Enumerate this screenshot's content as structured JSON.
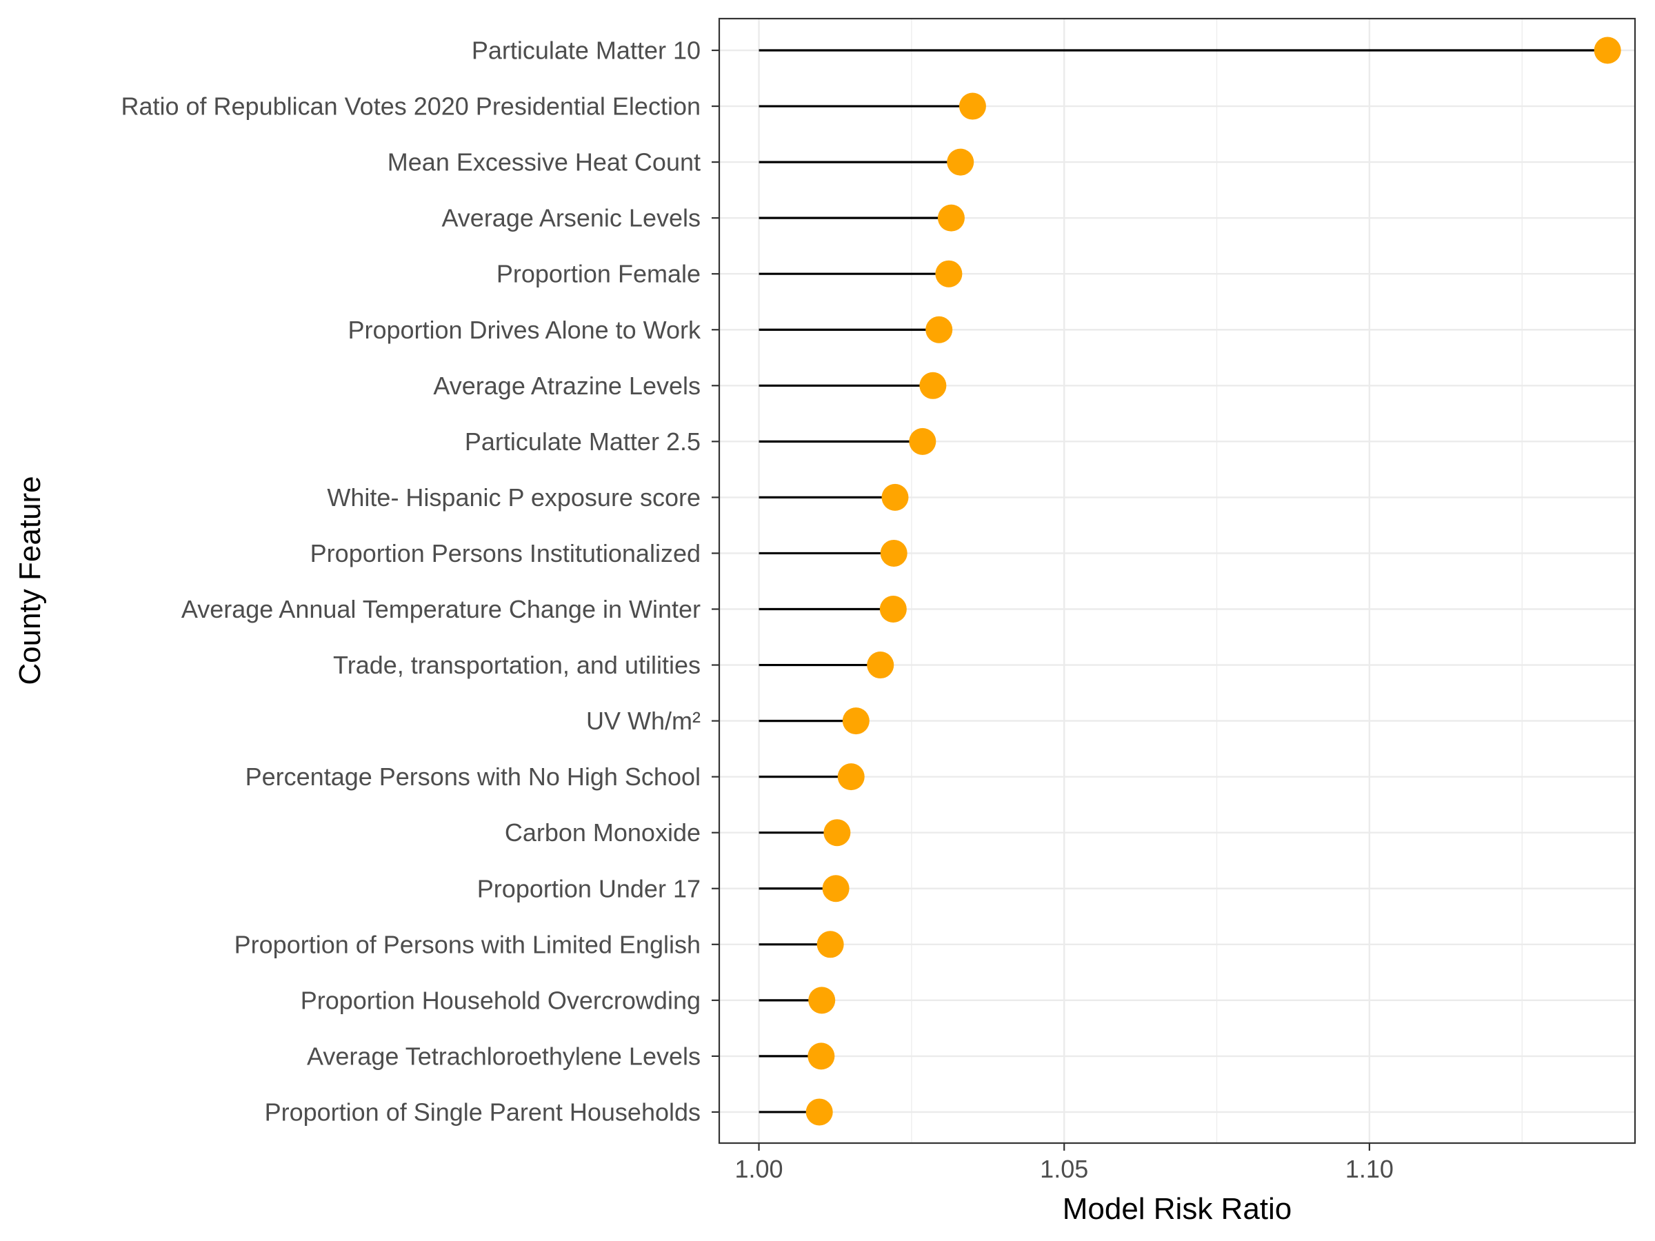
{
  "chart_data": {
    "type": "lollipop",
    "xlabel": "Model Risk Ratio",
    "ylabel": "County Feature",
    "xlim": [
      0.9935,
      1.1435
    ],
    "xticks": [
      1.0,
      1.05,
      1.1
    ],
    "xtick_labels": [
      "1.00",
      "1.05",
      "1.10"
    ],
    "baseline": 1.0,
    "grid": true,
    "point_color": "#FFA500",
    "stem_color": "#000000",
    "categories": [
      "Particulate Matter 10",
      "Ratio of Republican Votes 2020 Presidential Election",
      "Mean Excessive Heat Count",
      "Average Arsenic Levels",
      "Proportion Female",
      "Proportion Drives Alone to Work",
      "Average Atrazine Levels",
      "Particulate Matter 2.5",
      "White- Hispanic P exposure score",
      "Proportion Persons Institutionalized",
      "Average Annual Temperature Change in Winter",
      "Trade, transportation, and utilities",
      "UV Wh/m²",
      "Percentage Persons with No High School",
      "Carbon Monoxide",
      "Proportion Under 17",
      "Proportion of Persons with Limited English",
      "Proportion Household Overcrowding",
      "Average Tetrachloroethylene Levels",
      "Proportion of Single Parent Households"
    ],
    "values": [
      1.139,
      1.035,
      1.033,
      1.0315,
      1.0311,
      1.0295,
      1.0285,
      1.0268,
      1.0223,
      1.0221,
      1.022,
      1.0199,
      1.0159,
      1.0151,
      1.0128,
      1.0126,
      1.0117,
      1.0103,
      1.0102,
      1.0099
    ]
  }
}
